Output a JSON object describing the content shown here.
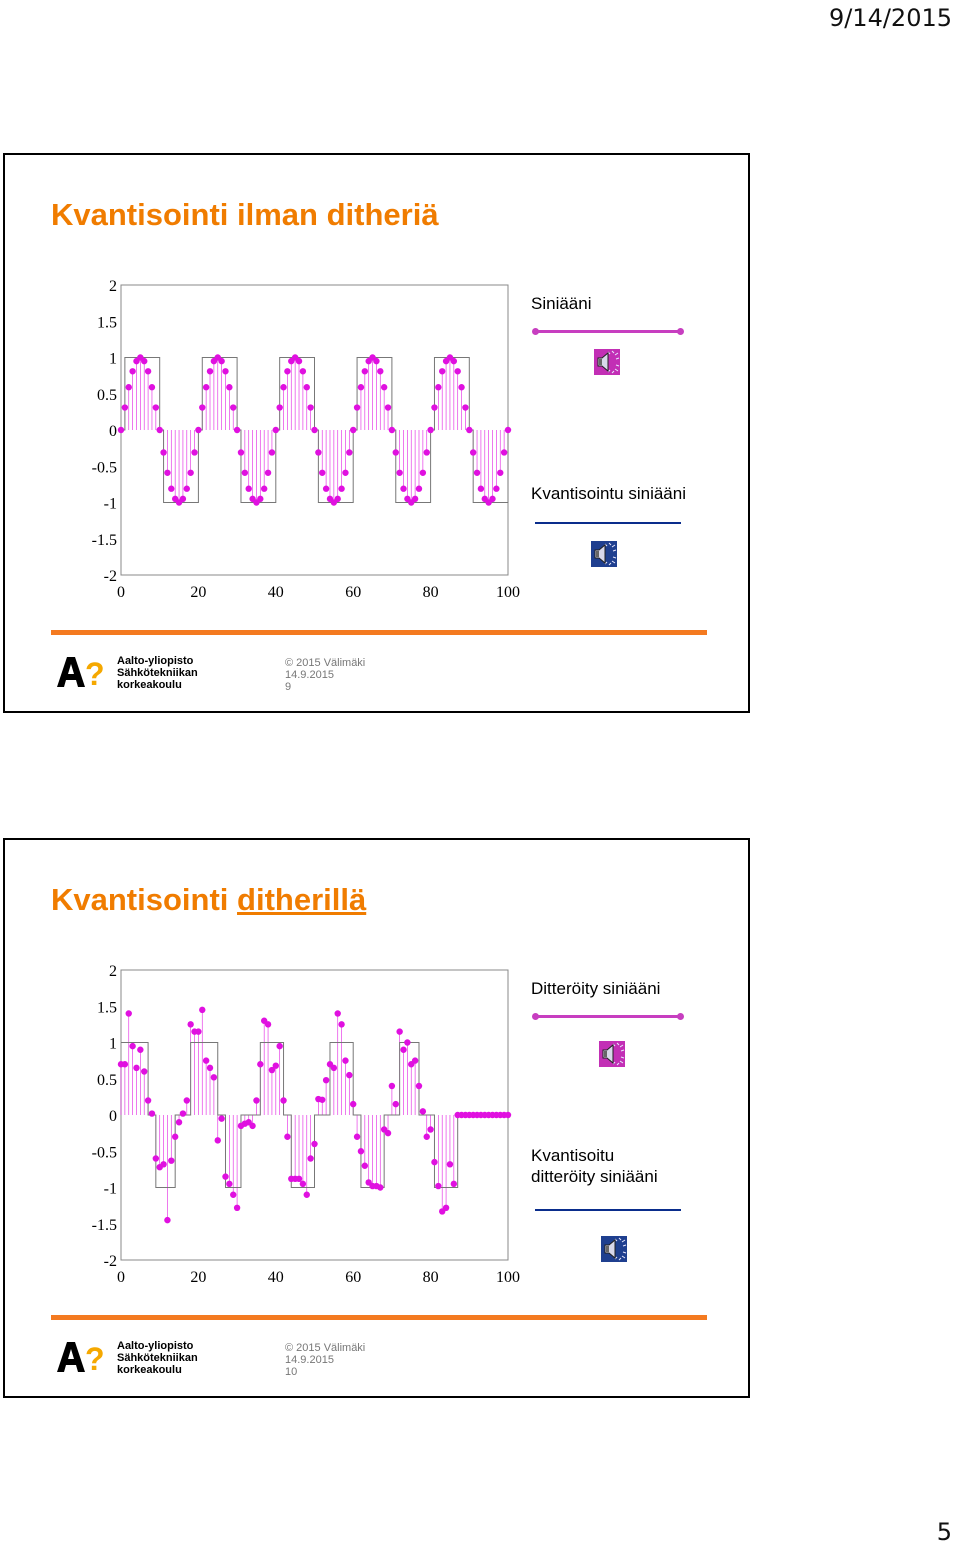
{
  "page": {
    "date": "9/14/2015",
    "number": "5"
  },
  "slides": [
    {
      "title": "Kvantisointi ilman ditheriä",
      "legend": {
        "sine_label": "Siniääni",
        "quant_label": "Kvantisointu siniääni"
      },
      "footer": {
        "org_line1": "Aalto-yliopisto",
        "org_line2": "Sähkötekniikan",
        "org_line3": "korkeakoulu",
        "copyright": "© 2015 Välimäki",
        "date": "14.9.2015",
        "slide_no": "9"
      }
    },
    {
      "title_part1": "Kvantisointi ",
      "title_part2": "ditherillä",
      "legend": {
        "sine_label": "Ditteröity siniääni",
        "quant_label_line1": "Kvantisoitu",
        "quant_label_line2": "ditteröity siniääni"
      },
      "footer": {
        "org_line1": "Aalto-yliopisto",
        "org_line2": "Sähkötekniikan",
        "org_line3": "korkeakoulu",
        "copyright": "© 2015 Välimäki",
        "date": "14.9.2015",
        "slide_no": "10"
      }
    }
  ],
  "colors": {
    "title": "#f07c00",
    "sine": "#e010e0",
    "quantized": "#0a2d8c",
    "footer_bar": "#f47a20"
  },
  "icons": [
    "speaker-icon"
  ],
  "chart_data": [
    {
      "type": "scatter",
      "title": "",
      "xlabel": "",
      "ylabel": "",
      "xlim": [
        0,
        100
      ],
      "ylim": [
        -2,
        2
      ],
      "xticks": [
        "0",
        "20",
        "40",
        "60",
        "80",
        "100"
      ],
      "yticks": [
        "2",
        "1.5",
        "1",
        "0.5",
        "0",
        "-0.5",
        "-1",
        "-1.5",
        "-2"
      ],
      "grid": false,
      "series": [
        {
          "name": "Siniääni",
          "style": "stem",
          "x": [
            0,
            1,
            2,
            3,
            4,
            5,
            6,
            7,
            8,
            9,
            10,
            11,
            12,
            13,
            14,
            15,
            16,
            17,
            18,
            19,
            20,
            21,
            22,
            23,
            24,
            25,
            26,
            27,
            28,
            29,
            30,
            31,
            32,
            33,
            34,
            35,
            36,
            37,
            38,
            39,
            40,
            41,
            42,
            43,
            44,
            45,
            46,
            47,
            48,
            49,
            50,
            51,
            52,
            53,
            54,
            55,
            56,
            57,
            58,
            59,
            60,
            61,
            62,
            63,
            64,
            65,
            66,
            67,
            68,
            69,
            70,
            71,
            72,
            73,
            74,
            75,
            76,
            77,
            78,
            79,
            80,
            81,
            82,
            83,
            84,
            85,
            86,
            87,
            88,
            89,
            90,
            91,
            92,
            93,
            94,
            95,
            96,
            97,
            98,
            99,
            100
          ],
          "y": [
            0,
            0.31,
            0.59,
            0.81,
            0.95,
            1,
            0.95,
            0.81,
            0.59,
            0.31,
            0,
            -0.31,
            -0.59,
            -0.81,
            -0.95,
            -1,
            -0.95,
            -0.81,
            -0.59,
            -0.31,
            0,
            0.31,
            0.59,
            0.81,
            0.95,
            1,
            0.95,
            0.81,
            0.59,
            0.31,
            0,
            -0.31,
            -0.59,
            -0.81,
            -0.95,
            -1,
            -0.95,
            -0.81,
            -0.59,
            -0.31,
            0,
            0.31,
            0.59,
            0.81,
            0.95,
            1,
            0.95,
            0.81,
            0.59,
            0.31,
            0,
            -0.31,
            -0.59,
            -0.81,
            -0.95,
            -1,
            -0.95,
            -0.81,
            -0.59,
            -0.31,
            0,
            0.31,
            0.59,
            0.81,
            0.95,
            1,
            0.95,
            0.81,
            0.59,
            0.31,
            0,
            -0.31,
            -0.59,
            -0.81,
            -0.95,
            -1,
            -0.95,
            -0.81,
            -0.59,
            -0.31,
            0,
            0.31,
            0.59,
            0.81,
            0.95,
            1,
            0.95,
            0.81,
            0.59,
            0.31,
            0,
            -0.31,
            -0.59,
            -0.81,
            -0.95,
            -1,
            -0.95,
            -0.81,
            -0.59,
            -0.31,
            0
          ]
        },
        {
          "name": "Kvantisointu siniääni",
          "style": "step",
          "x": [
            0,
            1,
            2,
            3,
            4,
            5,
            6,
            7,
            8,
            9,
            10,
            11,
            12,
            13,
            14,
            15,
            16,
            17,
            18,
            19,
            20,
            21,
            22,
            23,
            24,
            25,
            26,
            27,
            28,
            29,
            30,
            31,
            32,
            33,
            34,
            35,
            36,
            37,
            38,
            39,
            40,
            41,
            42,
            43,
            44,
            45,
            46,
            47,
            48,
            49,
            50,
            51,
            52,
            53,
            54,
            55,
            56,
            57,
            58,
            59,
            60,
            61,
            62,
            63,
            64,
            65,
            66,
            67,
            68,
            69,
            70,
            71,
            72,
            73,
            74,
            75,
            76,
            77,
            78,
            79,
            80,
            81,
            82,
            83,
            84,
            85,
            86,
            87,
            88,
            89,
            90,
            91,
            92,
            93,
            94,
            95,
            96,
            97,
            98,
            99,
            100
          ],
          "y": [
            0,
            1,
            1,
            1,
            1,
            1,
            1,
            1,
            1,
            1,
            0,
            -1,
            -1,
            -1,
            -1,
            -1,
            -1,
            -1,
            -1,
            -1,
            0,
            1,
            1,
            1,
            1,
            1,
            1,
            1,
            1,
            1,
            0,
            -1,
            -1,
            -1,
            -1,
            -1,
            -1,
            -1,
            -1,
            -1,
            0,
            1,
            1,
            1,
            1,
            1,
            1,
            1,
            1,
            1,
            0,
            -1,
            -1,
            -1,
            -1,
            -1,
            -1,
            -1,
            -1,
            -1,
            0,
            1,
            1,
            1,
            1,
            1,
            1,
            1,
            1,
            1,
            0,
            -1,
            -1,
            -1,
            -1,
            -1,
            -1,
            -1,
            -1,
            -1,
            0,
            1,
            1,
            1,
            1,
            1,
            1,
            1,
            1,
            1,
            0,
            -1,
            -1,
            -1,
            -1,
            -1,
            -1,
            -1,
            -1,
            -1,
            0
          ]
        }
      ]
    },
    {
      "type": "scatter",
      "title": "",
      "xlabel": "",
      "ylabel": "",
      "xlim": [
        0,
        100
      ],
      "ylim": [
        -2,
        2
      ],
      "xticks": [
        "0",
        "20",
        "40",
        "60",
        "80",
        "100"
      ],
      "yticks": [
        "2",
        "1.5",
        "1",
        "0.5",
        "0",
        "-0.5",
        "-1",
        "-1.5",
        "-2"
      ],
      "grid": false,
      "series": [
        {
          "name": "Ditteröity siniääni",
          "style": "stem",
          "x": [
            0,
            1,
            2,
            3,
            4,
            5,
            6,
            7,
            8,
            9,
            10,
            11,
            12,
            13,
            14,
            15,
            16,
            17,
            18,
            19,
            20,
            21,
            22,
            23,
            24,
            25,
            26,
            27,
            28,
            29,
            30,
            31,
            32,
            33,
            34,
            35,
            36,
            37,
            38,
            39,
            40,
            41,
            42,
            43,
            44,
            45,
            46,
            47,
            48,
            49,
            50,
            51,
            52,
            53,
            54,
            55,
            56,
            57,
            58,
            59,
            60,
            61,
            62,
            63,
            64,
            65,
            66,
            67,
            68,
            69,
            70,
            71,
            72,
            73,
            74,
            75,
            76,
            77,
            78,
            79,
            80,
            81,
            82,
            83,
            84,
            85,
            86,
            87,
            88,
            89,
            90,
            91,
            92,
            93,
            94,
            95,
            96,
            97,
            98,
            99,
            100
          ],
          "y": [
            0.7,
            0.7,
            1.4,
            0.95,
            0.65,
            0.9,
            0.6,
            0.2,
            0.02,
            -0.6,
            -0.72,
            -0.68,
            -1.45,
            -0.63,
            -0.3,
            -0.1,
            0.02,
            0.2,
            1.25,
            1.15,
            1.15,
            1.45,
            0.75,
            0.65,
            0.52,
            -0.35,
            -0.05,
            -0.85,
            -0.95,
            -1.1,
            -1.28,
            -0.15,
            -0.12,
            -0.1,
            -0.15,
            0.2,
            0.7,
            1.3,
            1.25,
            0.62,
            0.68,
            0.95,
            0.2,
            -0.3,
            -0.88,
            -0.88,
            -0.88,
            -0.95,
            -1.1,
            -0.6,
            -0.4,
            0.22,
            0.21,
            0.48,
            0.7,
            0.65,
            1.4,
            1.25,
            0.75,
            0.55,
            0.15,
            -0.3,
            -0.5,
            -0.7,
            -0.93,
            -0.98,
            -0.98,
            -1,
            -0.2,
            -0.25,
            0.4,
            0.15,
            1.15,
            0.9,
            1.0,
            0.7,
            0.75,
            0.4,
            0.05,
            -0.3,
            -0.2,
            -0.65,
            -0.98,
            -1.33,
            -1.28,
            -0.68,
            -0.95,
            0.0,
            0.0,
            0.0,
            0.0,
            0.0,
            0.0,
            0.0,
            0.0,
            0.0,
            0.0,
            0.0,
            0.0,
            0.0,
            0.0
          ]
        },
        {
          "name": "Kvantisoitu ditteröity siniääni",
          "style": "step",
          "x": [
            0,
            1,
            2,
            3,
            4,
            5,
            6,
            7,
            8,
            9,
            10,
            11,
            12,
            13,
            14,
            15,
            16,
            17,
            18,
            19,
            20,
            21,
            22,
            23,
            24,
            25,
            26,
            27,
            28,
            29,
            30,
            31,
            32,
            33,
            34,
            35,
            36,
            37,
            38,
            39,
            40,
            41,
            42,
            43,
            44,
            45,
            46,
            47,
            48,
            49,
            50,
            51,
            52,
            53,
            54,
            55,
            56,
            57,
            58,
            59,
            60,
            61,
            62,
            63,
            64,
            65,
            66,
            67,
            68,
            69,
            70,
            71,
            72,
            73,
            74,
            75,
            76,
            77,
            78,
            79,
            80,
            81,
            82,
            83,
            84,
            85,
            86,
            87,
            88,
            89,
            90,
            91,
            92,
            93,
            94,
            95,
            96,
            97,
            98,
            99,
            100
          ],
          "y": [
            1,
            1,
            1,
            1,
            1,
            1,
            1,
            0,
            0,
            -1,
            -1,
            -1,
            -1,
            -1,
            0,
            0,
            0,
            0,
            1,
            1,
            1,
            1,
            1,
            1,
            1,
            0,
            0,
            -1,
            -1,
            -1,
            -1,
            0,
            0,
            0,
            0,
            0,
            1,
            1,
            1,
            1,
            1,
            1,
            0,
            0,
            -1,
            -1,
            -1,
            -1,
            -1,
            -1,
            0,
            0,
            0,
            0,
            1,
            1,
            1,
            1,
            1,
            1,
            0,
            0,
            -1,
            -1,
            -1,
            -1,
            -1,
            -1,
            0,
            0,
            0,
            0,
            1,
            1,
            1,
            1,
            1,
            0,
            0,
            0,
            0,
            -1,
            -1,
            -1,
            -1,
            -1,
            -1,
            0,
            0,
            0,
            0,
            0,
            0,
            0,
            0,
            0,
            0,
            0,
            0,
            0,
            0
          ]
        }
      ]
    }
  ]
}
